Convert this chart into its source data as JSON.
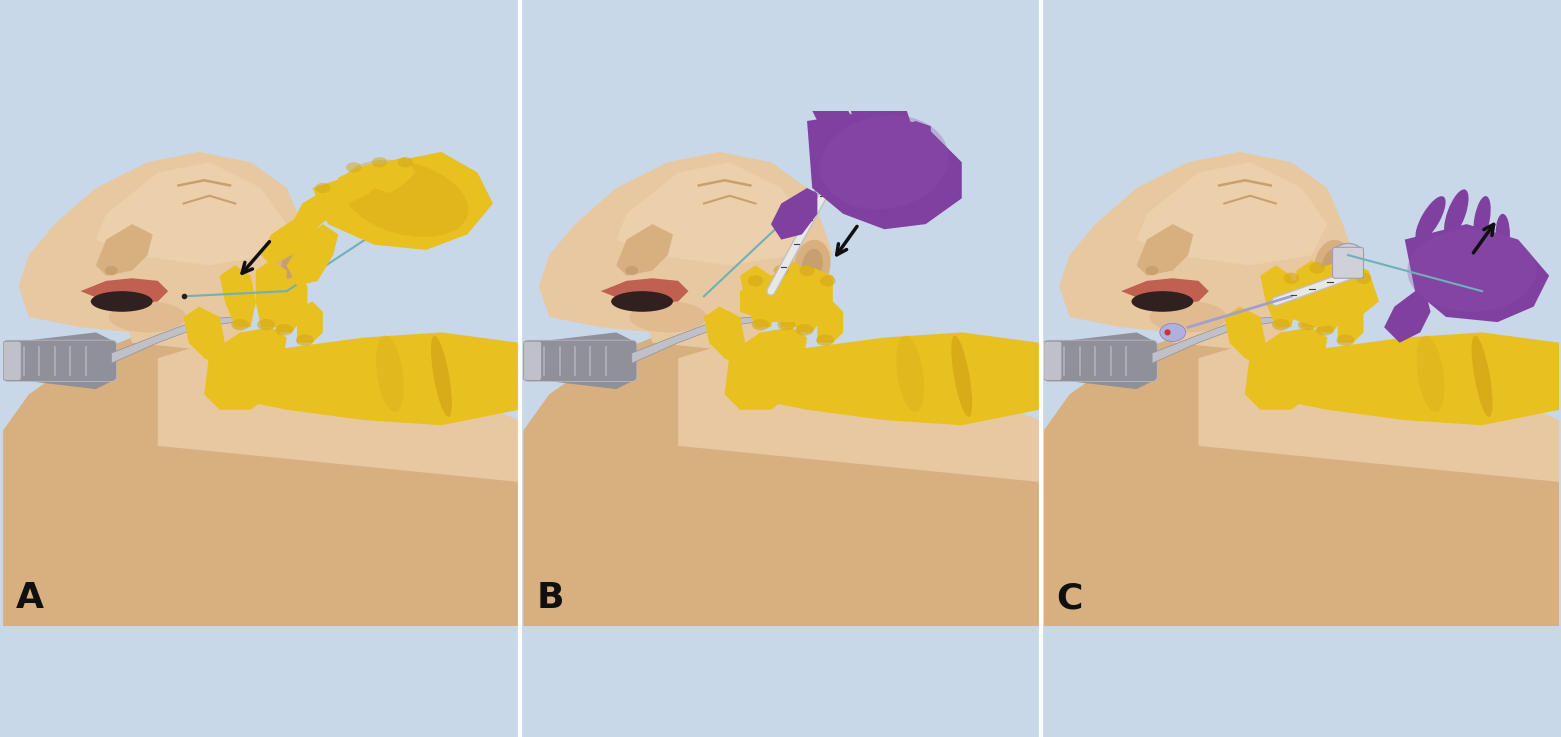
{
  "bg_color": "#c8d8e8",
  "yellow": "#E8C020",
  "yellow_dark": "#C09010",
  "yellow_mid": "#D4A818",
  "purple": "#8040A0",
  "purple_dark": "#602080",
  "purple_mid": "#9050B0",
  "skin": "#E8C8A0",
  "skin_dark": "#C8A070",
  "skin_mid": "#D8B080",
  "skin_light": "#F0D8B8",
  "gray_metal": "#909098",
  "gray_light": "#C0C0C8",
  "gray_mid": "#A0A0B0",
  "tube_color": "#E8E8E8",
  "tube_edge": "#C0C0C0",
  "introducer_color": "#70B0B8",
  "arrow_color": "#101010",
  "label_color": "#101010",
  "label_fontsize": 26,
  "white_divider": "#FFFFFF",
  "panel_labels": [
    "A",
    "B",
    "C"
  ]
}
